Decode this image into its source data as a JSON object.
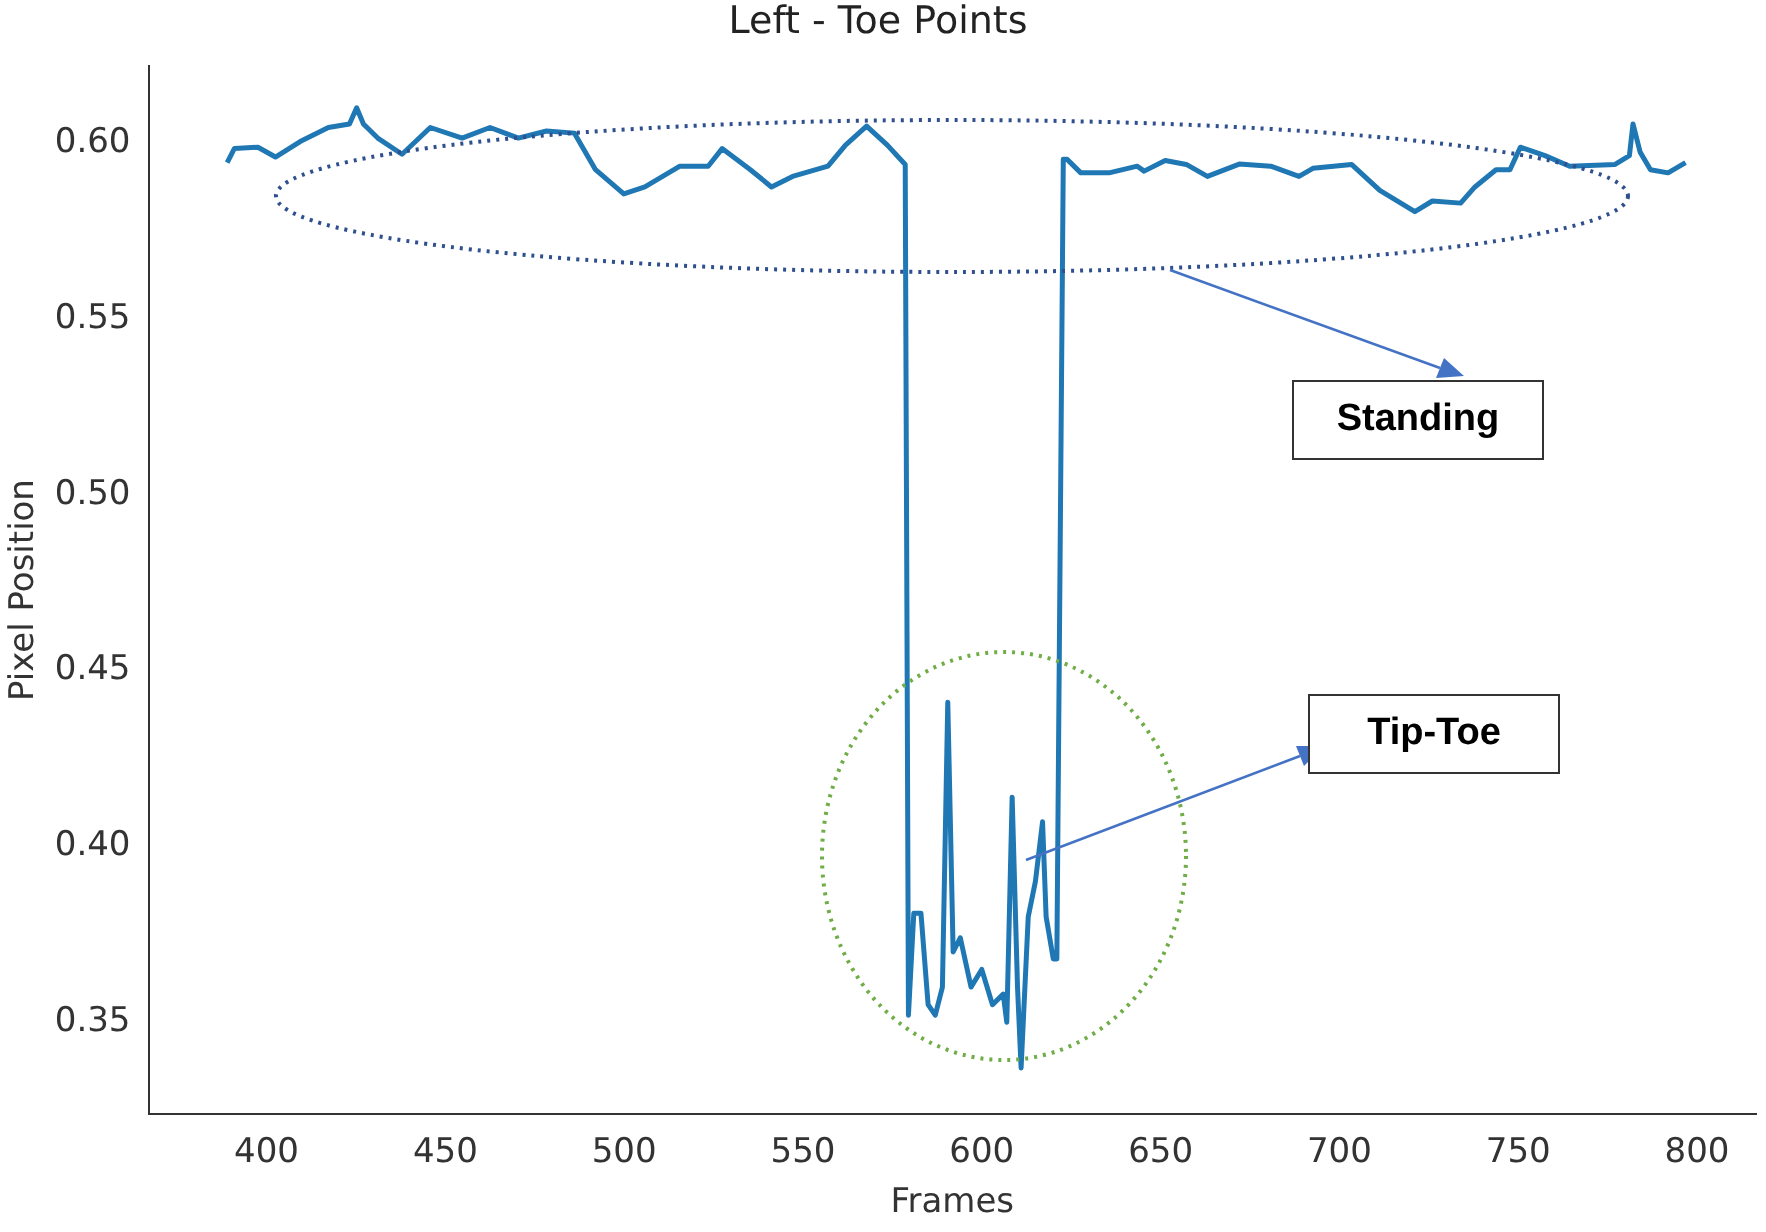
{
  "chart_data": {
    "type": "line",
    "title": "Left - Toe Points",
    "xlabel": "Frames",
    "ylabel": "Pixel Position",
    "annotations": [
      "Standing",
      "Tip-Toe"
    ],
    "xlim": [
      367,
      816.5
    ],
    "ylim": [
      0.3238,
      0.622
    ],
    "xticks": [
      400,
      450,
      500,
      550,
      600,
      650,
      700,
      750,
      800
    ],
    "yticks": [
      {
        "value": 0.35,
        "label": "0.35"
      },
      {
        "value": 0.4,
        "label": "0.40"
      },
      {
        "value": 0.45,
        "label": "0.45"
      },
      {
        "value": 0.5,
        "label": "0.50"
      },
      {
        "value": 0.55,
        "label": "0.55"
      },
      {
        "value": 0.6,
        "label": "0.60"
      }
    ],
    "series": [
      {
        "color": "#1f77b4",
        "x": [
          389,
          391,
          397.6,
          402.5,
          409.4,
          417.3,
          423.2,
          425.2,
          427.1,
          431.1,
          437.9,
          445.8,
          454.7,
          462.5,
          470.4,
          478.3,
          486.1,
          492,
          499.9,
          505.8,
          515.6,
          523.5,
          527.4,
          535.3,
          541.2,
          547.1,
          557,
          561.9,
          567.8,
          573.6,
          578.6,
          579.5,
          581,
          583,
          585,
          587,
          589,
          590.5,
          592,
          594,
          597,
          600,
          603,
          606,
          607,
          608.5,
          610,
          611,
          613,
          615,
          617,
          618,
          620,
          621,
          622.8,
          623.8,
          627.7,
          635.6,
          643.5,
          645.4,
          651.3,
          657.2,
          663.1,
          672,
          680.8,
          688.7,
          692.6,
          703.4,
          711.3,
          721.1,
          726,
          733.9,
          737.9,
          743.8,
          747.7,
          750.6,
          757.5,
          764.4,
          777.1,
          781.1,
          782.1,
          784.1,
          787,
          791.9,
          796.8
        ],
        "values": [
          0.5944,
          0.5984,
          0.5988,
          0.596,
          0.6004,
          0.6044,
          0.6054,
          0.61,
          0.6054,
          0.6014,
          0.5968,
          0.6044,
          0.6014,
          0.6044,
          0.6014,
          0.6034,
          0.6028,
          0.5924,
          0.5855,
          0.5875,
          0.5934,
          0.5934,
          0.5984,
          0.5924,
          0.5875,
          0.5905,
          0.5934,
          0.5994,
          0.6048,
          0.5994,
          0.5939,
          0.352,
          0.381,
          0.381,
          0.355,
          0.352,
          0.36,
          0.441,
          0.37,
          0.374,
          0.36,
          0.365,
          0.355,
          0.358,
          0.35,
          0.414,
          0.36,
          0.337,
          0.38,
          0.39,
          0.407,
          0.38,
          0.368,
          0.368,
          0.5954,
          0.5954,
          0.5915,
          0.5915,
          0.5934,
          0.592,
          0.595,
          0.5939,
          0.5905,
          0.594,
          0.5934,
          0.5905,
          0.5928,
          0.5939,
          0.5865,
          0.5805,
          0.5835,
          0.5829,
          0.5875,
          0.5924,
          0.5924,
          0.5988,
          0.5964,
          0.5934,
          0.5939,
          0.5964,
          0.6054,
          0.5974,
          0.5924,
          0.5915,
          0.5944
        ]
      }
    ]
  }
}
